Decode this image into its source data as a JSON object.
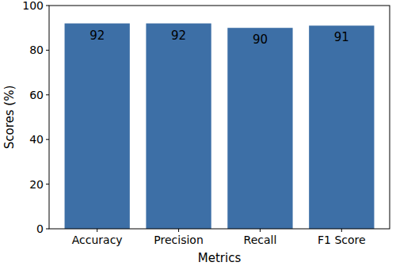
{
  "chart_data": {
    "type": "bar",
    "x_label": "Metrics",
    "y_label": "Scores (%)",
    "categories": [
      "Accuracy",
      "Precision",
      "Recall",
      "F1 Score"
    ],
    "values": [
      92,
      92,
      90,
      91
    ],
    "color": "#3d6fa6",
    "ylim": [
      0,
      100
    ],
    "yticks": [
      0,
      20,
      40,
      60,
      80,
      100
    ],
    "grid": false,
    "data_labels": true
  }
}
